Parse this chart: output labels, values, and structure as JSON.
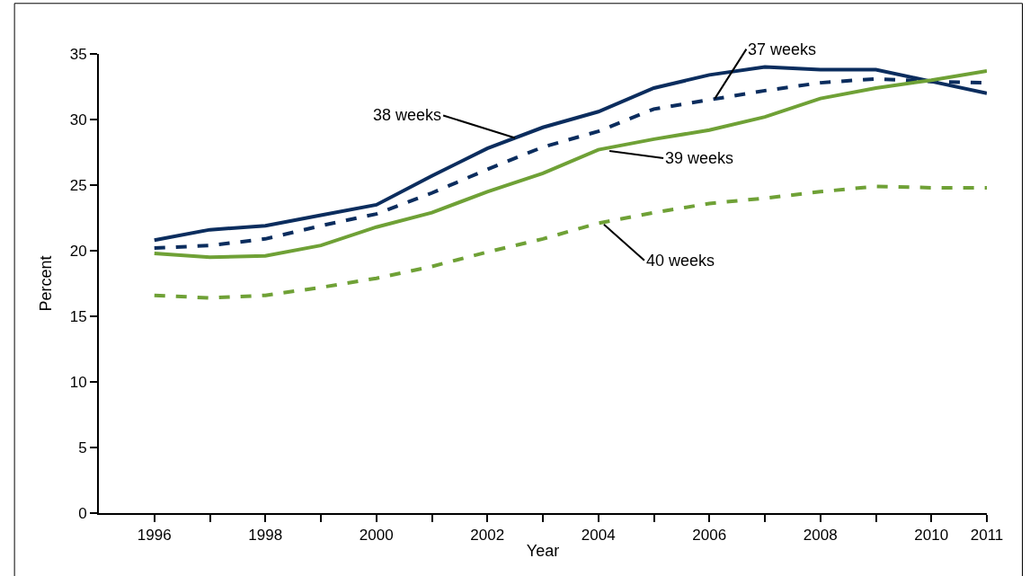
{
  "chart_data": {
    "type": "line",
    "xlabel": "Year",
    "ylabel": "Percent",
    "x": [
      1996,
      1997,
      1998,
      1999,
      2000,
      2001,
      2002,
      2003,
      2004,
      2005,
      2006,
      2007,
      2008,
      2009,
      2010,
      2011
    ],
    "series": [
      {
        "color": "#0b2d5e",
        "line_style": "solid",
        "values": [
          20.8,
          21.6,
          21.9,
          22.7,
          23.5,
          25.7,
          27.8,
          29.4,
          30.6,
          32.4,
          33.4,
          34.0,
          33.8,
          33.8,
          32.9,
          32.0
        ]
      },
      {
        "color": "#0b2d5e",
        "line_style": "dashed",
        "values": [
          20.2,
          20.4,
          20.9,
          21.9,
          22.8,
          24.4,
          26.2,
          27.9,
          29.1,
          30.8,
          31.5,
          32.2,
          32.8,
          33.1,
          32.9,
          32.8
        ]
      },
      {
        "color": "#6fa136",
        "line_style": "solid",
        "values": [
          19.8,
          19.5,
          19.6,
          20.4,
          21.8,
          22.9,
          24.5,
          25.9,
          27.7,
          28.5,
          29.2,
          30.2,
          31.6,
          32.4,
          33.0,
          33.7
        ]
      },
      {
        "color": "#6fa136",
        "line_style": "dashed",
        "values": [
          16.6,
          16.4,
          16.6,
          17.2,
          17.9,
          18.8,
          19.9,
          20.9,
          22.1,
          22.9,
          23.6,
          24.0,
          24.5,
          24.9,
          24.8,
          24.8
        ]
      }
    ],
    "annotations": [
      {
        "text": "38 weeks",
        "x": 2002.5,
        "y": 28.6
      },
      {
        "text": "37 weeks",
        "x": 2006.1,
        "y": 31.6
      },
      {
        "text": "39 weeks",
        "x": 2004.2,
        "y": 27.6
      },
      {
        "text": "40 weeks",
        "x": 2004.1,
        "y": 22.0
      }
    ],
    "xlim": [
      1995,
      2011
    ],
    "xticks": [
      1996,
      {
        "value": 1997,
        "label": null
      },
      1998,
      {
        "value": 1999,
        "label": null
      },
      2000,
      {
        "value": 2001,
        "label": null
      },
      2002,
      {
        "value": 2003,
        "label": null
      },
      2004,
      {
        "value": 2005,
        "label": null
      },
      2006,
      {
        "value": 2007,
        "label": null
      },
      2008,
      {
        "value": 2009,
        "label": null
      },
      2010,
      2011
    ],
    "ylim": [
      0,
      35
    ],
    "yticks": [
      0,
      5,
      10,
      15,
      20,
      25,
      30,
      35
    ],
    "marker": "none"
  }
}
